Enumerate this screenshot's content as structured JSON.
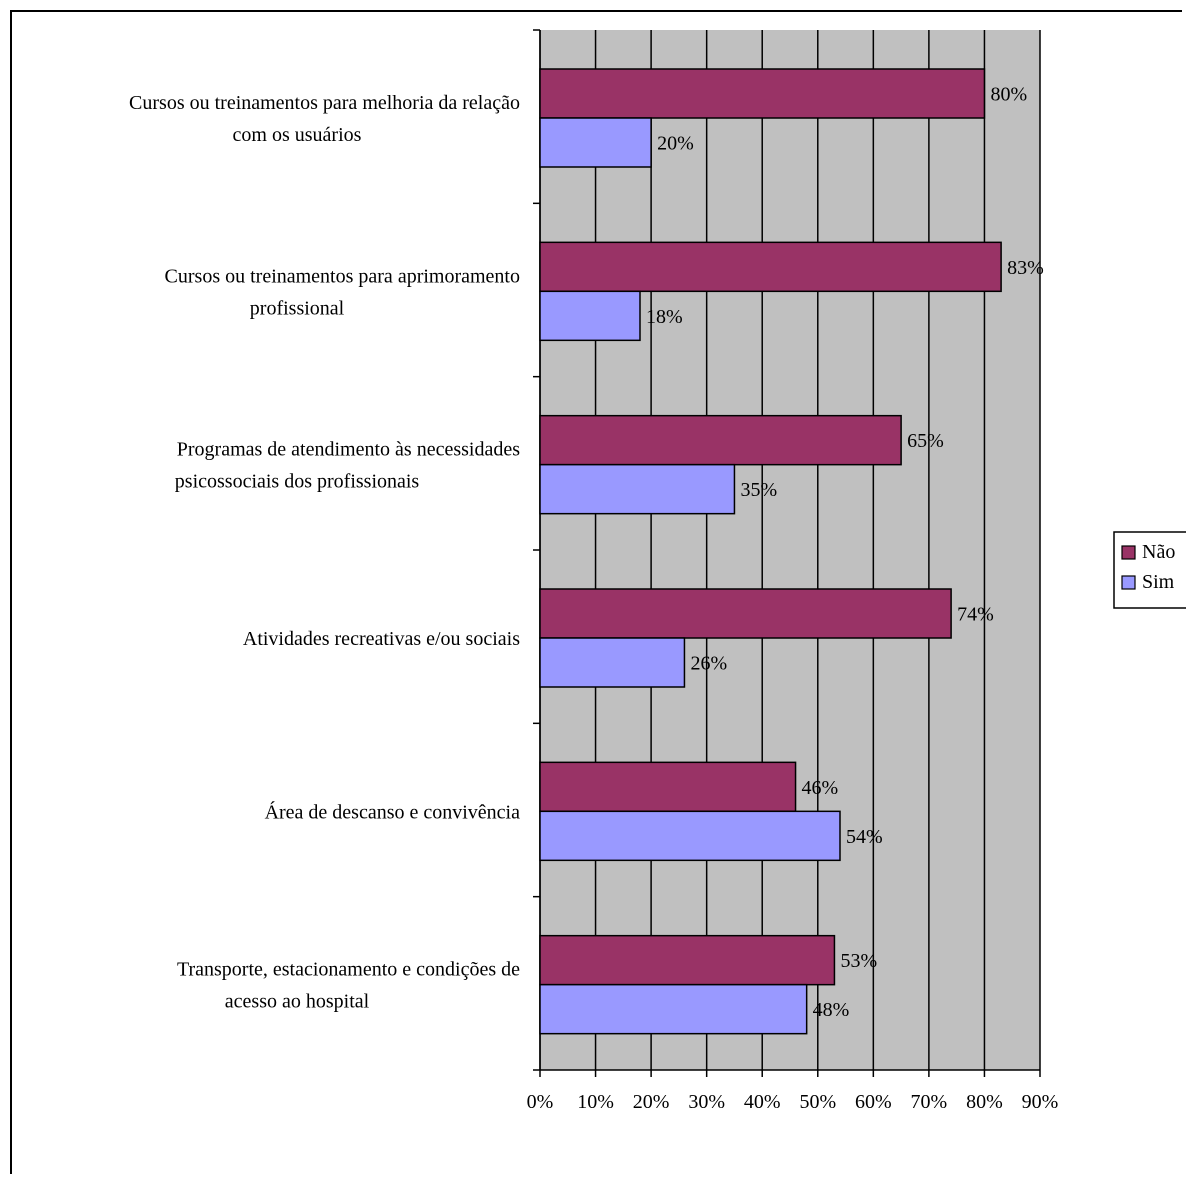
{
  "chart_data": {
    "type": "bar",
    "orientation": "horizontal",
    "categories": [
      [
        "Cursos ou treinamentos para melhoria da relação",
        "com os usuários"
      ],
      [
        "Cursos ou treinamentos para aprimoramento",
        "profissional"
      ],
      [
        "Programas de atendimento às necessidades",
        "psicossociais dos profissionais"
      ],
      [
        "Atividades recreativas e/ou sociais"
      ],
      [
        "Área de descanso e convivência"
      ],
      [
        "Transporte, estacionamento e condições de",
        "acesso ao hospital"
      ]
    ],
    "series": [
      {
        "name": "Não",
        "color": "#993366",
        "values": [
          80,
          83,
          65,
          74,
          46,
          53
        ],
        "labels": [
          "80%",
          "83%",
          "65%",
          "74%",
          "46%",
          "53%"
        ]
      },
      {
        "name": "Sim",
        "color": "#9999FF",
        "values": [
          20,
          18,
          35,
          26,
          54,
          48
        ],
        "labels": [
          "20%",
          "18%",
          "35%",
          "26%",
          "54%",
          "48%"
        ]
      }
    ],
    "xlim": [
      0,
      90
    ],
    "xticks": [
      "0%",
      "10%",
      "20%",
      "30%",
      "40%",
      "50%",
      "60%",
      "70%",
      "80%",
      "90%"
    ],
    "grid": true,
    "plot_background": "#C0C0C0",
    "legend": "right"
  }
}
